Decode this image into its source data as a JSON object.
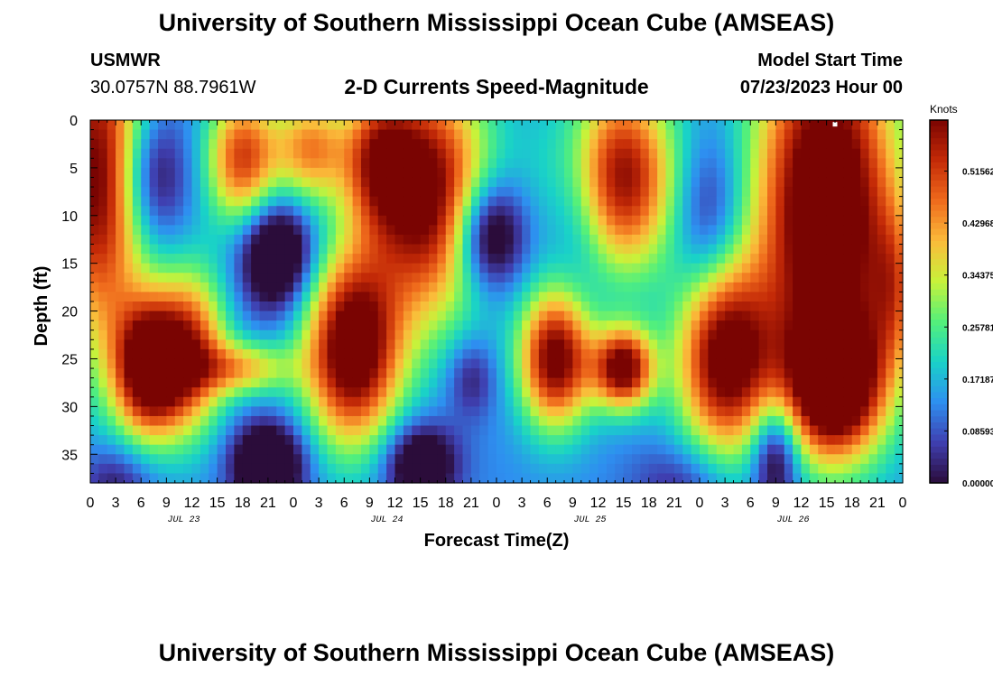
{
  "page": {
    "title": "University of Southern Mississippi Ocean Cube (AMSEAS)",
    "footer_title": "University of Southern Mississippi Ocean Cube (AMSEAS)",
    "station_id": "USMWR",
    "coordinates": "30.0757N  88.7961W",
    "subtitle": "2-D Currents Speed-Magnitude",
    "model_start_label": "Model Start Time",
    "model_start_value": "07/23/2023 Hour 00"
  },
  "colors": {
    "colormap": [
      "#2b0c3a",
      "#3f3fb0",
      "#2e8ff0",
      "#19d2c8",
      "#54f07a",
      "#c8f23a",
      "#fbbb3a",
      "#ef6a1c",
      "#c42a07",
      "#7a0402"
    ]
  },
  "chart_data": {
    "type": "heatmap",
    "title": "2-D Currents Speed-Magnitude",
    "xlabel": "Forecast Time(Z)",
    "ylabel": "Depth (ft)",
    "x_ticks": [
      "0",
      "3",
      "6",
      "9",
      "12",
      "15",
      "18",
      "21",
      "0",
      "3",
      "6",
      "9",
      "12",
      "15",
      "18",
      "21",
      "0",
      "3",
      "6",
      "9",
      "12",
      "15",
      "18",
      "21",
      "0",
      "3",
      "6",
      "9",
      "12",
      "15",
      "18",
      "21",
      "0"
    ],
    "day_labels": [
      "JUL 23",
      "JUL 24",
      "JUL 25",
      "JUL 26"
    ],
    "y_ticks": [
      "0",
      "5",
      "10",
      "15",
      "20",
      "25",
      "30",
      "35"
    ],
    "xlim": [
      0,
      96
    ],
    "ylim": [
      0,
      38
    ],
    "colorbar": {
      "label": "Knots",
      "range": [
        0.0,
        0.6
      ],
      "tick_labels": [
        "0.51562",
        "0.42968",
        "0.34375",
        "0.25781",
        "0.17187",
        "0.08593",
        "0.00000"
      ],
      "tick_values": [
        0.51562,
        0.42968,
        0.34375,
        0.25781,
        0.17187,
        0.08593,
        0.0
      ]
    },
    "features": [
      {
        "t": 1,
        "d": 6,
        "v": 0.5,
        "st": 4,
        "sd": 12
      },
      {
        "t": 7,
        "d": 26,
        "v": 0.55,
        "st": 3,
        "sd": 5
      },
      {
        "t": 12,
        "d": 24,
        "v": 0.35,
        "st": 3,
        "sd": 6
      },
      {
        "t": 18,
        "d": 26,
        "v": 0.25,
        "st": 4,
        "sd": 2
      },
      {
        "t": 18,
        "d": 4,
        "v": 0.38,
        "st": 3,
        "sd": 5
      },
      {
        "t": 26,
        "d": 3,
        "v": 0.3,
        "st": 3,
        "sd": 4
      },
      {
        "t": 31,
        "d": 24,
        "v": 0.55,
        "st": 4,
        "sd": 7
      },
      {
        "t": 40,
        "d": 8,
        "v": 0.5,
        "st": 5,
        "sd": 9
      },
      {
        "t": 34,
        "d": 4,
        "v": 0.3,
        "st": 3,
        "sd": 5
      },
      {
        "t": 55,
        "d": 25,
        "v": 0.5,
        "st": 3,
        "sd": 5
      },
      {
        "t": 63,
        "d": 26,
        "v": 0.5,
        "st": 2.5,
        "sd": 3
      },
      {
        "t": 62,
        "d": 6,
        "v": 0.5,
        "st": 5,
        "sd": 7
      },
      {
        "t": 75,
        "d": 25,
        "v": 0.5,
        "st": 4,
        "sd": 7
      },
      {
        "t": 87,
        "d": 9,
        "v": 0.6,
        "st": 6,
        "sd": 14
      },
      {
        "t": 88,
        "d": 28,
        "v": 0.5,
        "st": 4,
        "sd": 5
      },
      {
        "t": 95,
        "d": 18,
        "v": 0.2,
        "st": 2,
        "sd": 6
      },
      {
        "t": 22,
        "d": 14,
        "v": -0.3,
        "st": 3,
        "sd": 4
      },
      {
        "t": 47,
        "d": 12,
        "v": -0.3,
        "st": 3,
        "sd": 4
      },
      {
        "t": 21,
        "d": 36,
        "v": -0.3,
        "st": 3,
        "sd": 3
      },
      {
        "t": 39,
        "d": 36,
        "v": -0.25,
        "st": 3,
        "sd": 3
      },
      {
        "t": 81,
        "d": 35,
        "v": -0.25,
        "st": 2,
        "sd": 4
      },
      {
        "t": 7,
        "d": 6,
        "v": -0.2,
        "st": 3,
        "sd": 5
      },
      {
        "t": 58,
        "d": 8,
        "v": -0.18,
        "st": 3,
        "sd": 7
      },
      {
        "t": 73,
        "d": 10,
        "v": -0.15,
        "st": 3,
        "sd": 6
      },
      {
        "t": 45,
        "d": 27,
        "v": -0.12,
        "st": 2,
        "sd": 3
      },
      {
        "t": 3,
        "d": 38,
        "v": -0.12,
        "st": 3,
        "sd": 3
      },
      {
        "t": 70,
        "d": 38,
        "v": -0.1,
        "st": 4,
        "sd": 3
      }
    ],
    "annotations": [
      {
        "text": "max marker",
        "t": 88,
        "d": 0.3
      }
    ]
  }
}
